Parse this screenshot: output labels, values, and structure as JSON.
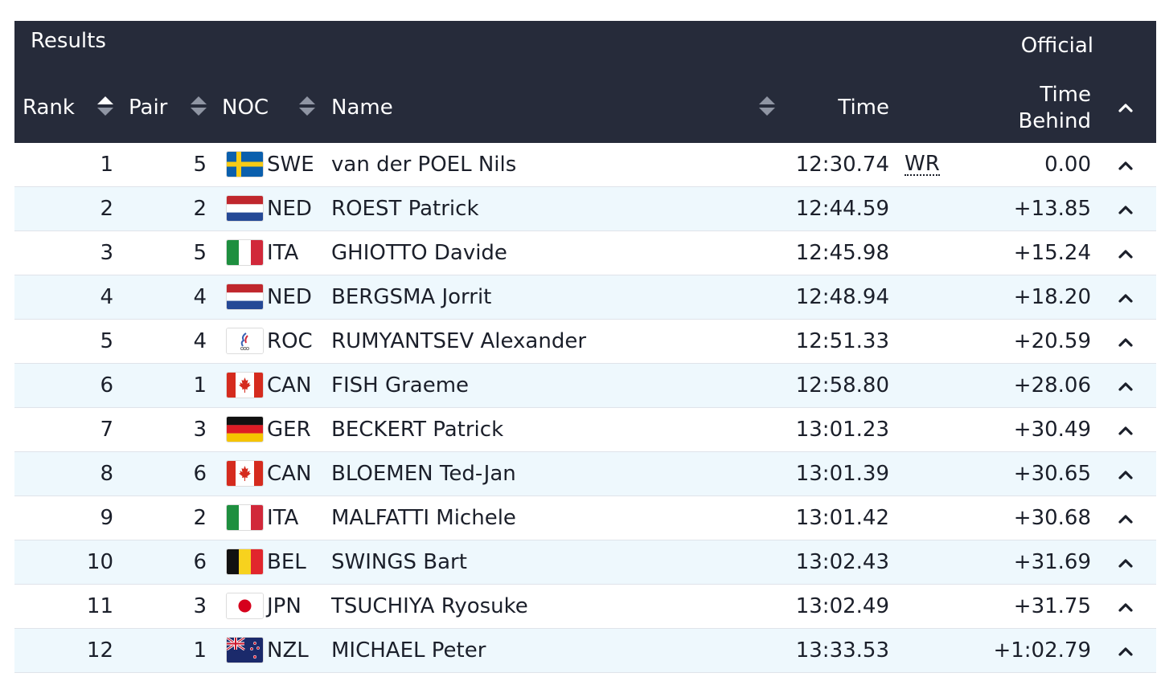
{
  "header": {
    "title": "Results",
    "official": "Official",
    "columns": {
      "rank": "Rank",
      "pair": "Pair",
      "noc": "NOC",
      "name": "Name",
      "time": "Time",
      "time_behind_line1": "Time",
      "time_behind_line2": "Behind"
    }
  },
  "rows": [
    {
      "rank": "1",
      "pair": "5",
      "noc": "SWE",
      "name": "van der POEL Nils",
      "time": "12:30.74",
      "record": "WR",
      "behind": "0.00"
    },
    {
      "rank": "2",
      "pair": "2",
      "noc": "NED",
      "name": "ROEST Patrick",
      "time": "12:44.59",
      "record": "",
      "behind": "+13.85"
    },
    {
      "rank": "3",
      "pair": "5",
      "noc": "ITA",
      "name": "GHIOTTO Davide",
      "time": "12:45.98",
      "record": "",
      "behind": "+15.24"
    },
    {
      "rank": "4",
      "pair": "4",
      "noc": "NED",
      "name": "BERGSMA Jorrit",
      "time": "12:48.94",
      "record": "",
      "behind": "+18.20"
    },
    {
      "rank": "5",
      "pair": "4",
      "noc": "ROC",
      "name": "RUMYANTSEV Alexander",
      "time": "12:51.33",
      "record": "",
      "behind": "+20.59"
    },
    {
      "rank": "6",
      "pair": "1",
      "noc": "CAN",
      "name": "FISH Graeme",
      "time": "12:58.80",
      "record": "",
      "behind": "+28.06"
    },
    {
      "rank": "7",
      "pair": "3",
      "noc": "GER",
      "name": "BECKERT Patrick",
      "time": "13:01.23",
      "record": "",
      "behind": "+30.49"
    },
    {
      "rank": "8",
      "pair": "6",
      "noc": "CAN",
      "name": "BLOEMEN Ted-Jan",
      "time": "13:01.39",
      "record": "",
      "behind": "+30.65"
    },
    {
      "rank": "9",
      "pair": "2",
      "noc": "ITA",
      "name": "MALFATTI Michele",
      "time": "13:01.42",
      "record": "",
      "behind": "+30.68"
    },
    {
      "rank": "10",
      "pair": "6",
      "noc": "BEL",
      "name": "SWINGS Bart",
      "time": "13:02.43",
      "record": "",
      "behind": "+31.69"
    },
    {
      "rank": "11",
      "pair": "3",
      "noc": "JPN",
      "name": "TSUCHIYA Ryosuke",
      "time": "13:02.49",
      "record": "",
      "behind": "+31.75"
    },
    {
      "rank": "12",
      "pair": "1",
      "noc": "NZL",
      "name": "MICHAEL Peter",
      "time": "13:33.53",
      "record": "",
      "behind": "+1:02.79"
    }
  ],
  "icons": {
    "sort": "sort-icon",
    "expand": "chevron-up-icon"
  },
  "colors": {
    "header_bg": "#262b3a",
    "row_alt_bg": "#eef8fd"
  }
}
